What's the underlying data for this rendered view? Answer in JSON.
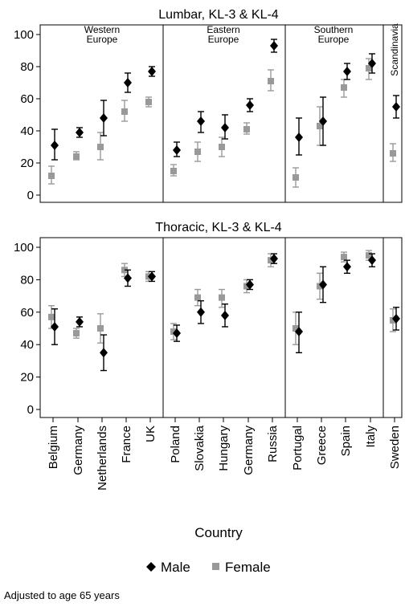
{
  "chart_data": [
    {
      "type": "scatter",
      "title": "Lumbar, KL-3 & KL-4",
      "ylim": [
        0,
        100
      ],
      "yticks": [
        0,
        20,
        40,
        60,
        80,
        100
      ],
      "groups": [
        "Western\nEurope",
        "Eastern\nEurope",
        "Southern\nEurope",
        "Scandinavia"
      ],
      "categories": [
        "Belgium",
        "Germany",
        "Netherlands",
        "France",
        "UK",
        "Poland",
        "Slovakia",
        "Hungary",
        "Germany",
        "Russia",
        "Portugal",
        "Greece",
        "Spain",
        "Italy",
        "Sweden"
      ],
      "series": [
        {
          "name": "Male",
          "values": [
            31,
            39,
            48,
            70,
            77,
            28,
            46,
            42,
            56,
            93,
            36,
            46,
            77,
            82,
            55
          ],
          "lower": [
            22,
            36,
            37,
            64,
            74,
            24,
            39,
            35,
            52,
            89,
            25,
            31,
            72,
            76,
            48
          ],
          "upper": [
            41,
            42,
            59,
            76,
            80,
            33,
            52,
            50,
            60,
            97,
            48,
            61,
            82,
            88,
            62
          ]
        },
        {
          "name": "Female",
          "values": [
            12,
            24,
            30,
            52,
            58,
            15,
            27,
            30,
            41,
            71,
            11,
            43,
            67,
            79,
            26
          ],
          "lower": [
            7,
            22,
            22,
            46,
            55,
            12,
            21,
            24,
            38,
            65,
            5,
            31,
            61,
            72,
            21
          ],
          "upper": [
            18,
            27,
            39,
            59,
            61,
            19,
            33,
            36,
            45,
            78,
            17,
            55,
            72,
            85,
            32
          ]
        }
      ]
    },
    {
      "type": "scatter",
      "title": "Thoracic, KL-3 & KL-4",
      "ylim": [
        0,
        100
      ],
      "yticks": [
        0,
        20,
        40,
        60,
        80,
        100
      ],
      "categories": [
        "Belgium",
        "Germany",
        "Netherlands",
        "France",
        "UK",
        "Poland",
        "Slovakia",
        "Hungary",
        "Germany",
        "Russia",
        "Portugal",
        "Greece",
        "Spain",
        "Italy",
        "Sweden"
      ],
      "series": [
        {
          "name": "Male",
          "values": [
            51,
            54,
            35,
            81,
            82,
            47,
            60,
            58,
            77,
            93,
            48,
            77,
            88,
            92,
            56
          ],
          "lower": [
            40,
            51,
            24,
            76,
            79,
            42,
            53,
            51,
            74,
            90,
            35,
            66,
            84,
            88,
            49
          ],
          "upper": [
            62,
            57,
            46,
            86,
            85,
            52,
            67,
            65,
            80,
            96,
            60,
            88,
            92,
            96,
            63
          ]
        },
        {
          "name": "Female",
          "values": [
            57,
            47,
            50,
            86,
            82,
            48,
            69,
            69,
            76,
            92,
            50,
            76,
            94,
            95,
            55
          ],
          "lower": [
            50,
            44,
            41,
            82,
            79,
            43,
            64,
            63,
            72,
            88,
            40,
            68,
            91,
            92,
            48
          ],
          "upper": [
            64,
            50,
            59,
            90,
            85,
            53,
            74,
            74,
            80,
            96,
            60,
            84,
            97,
            98,
            62
          ]
        }
      ]
    }
  ],
  "xlabel": "Country",
  "legend": {
    "position": "bottom",
    "items": [
      {
        "label": "Male",
        "color": "#000000",
        "marker": "diamond"
      },
      {
        "label": "Female",
        "color": "#999999",
        "marker": "square"
      }
    ]
  },
  "note": "Adjusted to age 65 years",
  "colors": {
    "male": "#000000",
    "female": "#999999",
    "axis": "#000000"
  }
}
